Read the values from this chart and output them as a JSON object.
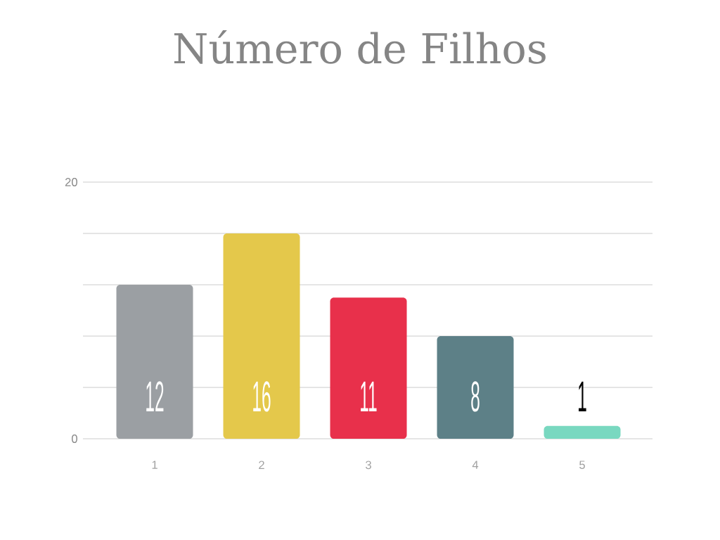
{
  "chart_data": {
    "type": "bar",
    "title": "Número de Filhos",
    "categories": [
      "1",
      "2",
      "3",
      "4",
      "5"
    ],
    "values": [
      12,
      16,
      11,
      8,
      1
    ],
    "colors": [
      "#9b9fa3",
      "#e4c84b",
      "#e8304b",
      "#5d8087",
      "#79d8c0"
    ],
    "ylim": [
      0,
      20
    ],
    "yticks": [
      0,
      {
        "value": 4,
        "label": null
      },
      {
        "value": 8,
        "label": null
      },
      {
        "value": 12,
        "label": null
      },
      {
        "value": 16,
        "label": null
      },
      20
    ],
    "grid": "y",
    "data_labels": true
  }
}
